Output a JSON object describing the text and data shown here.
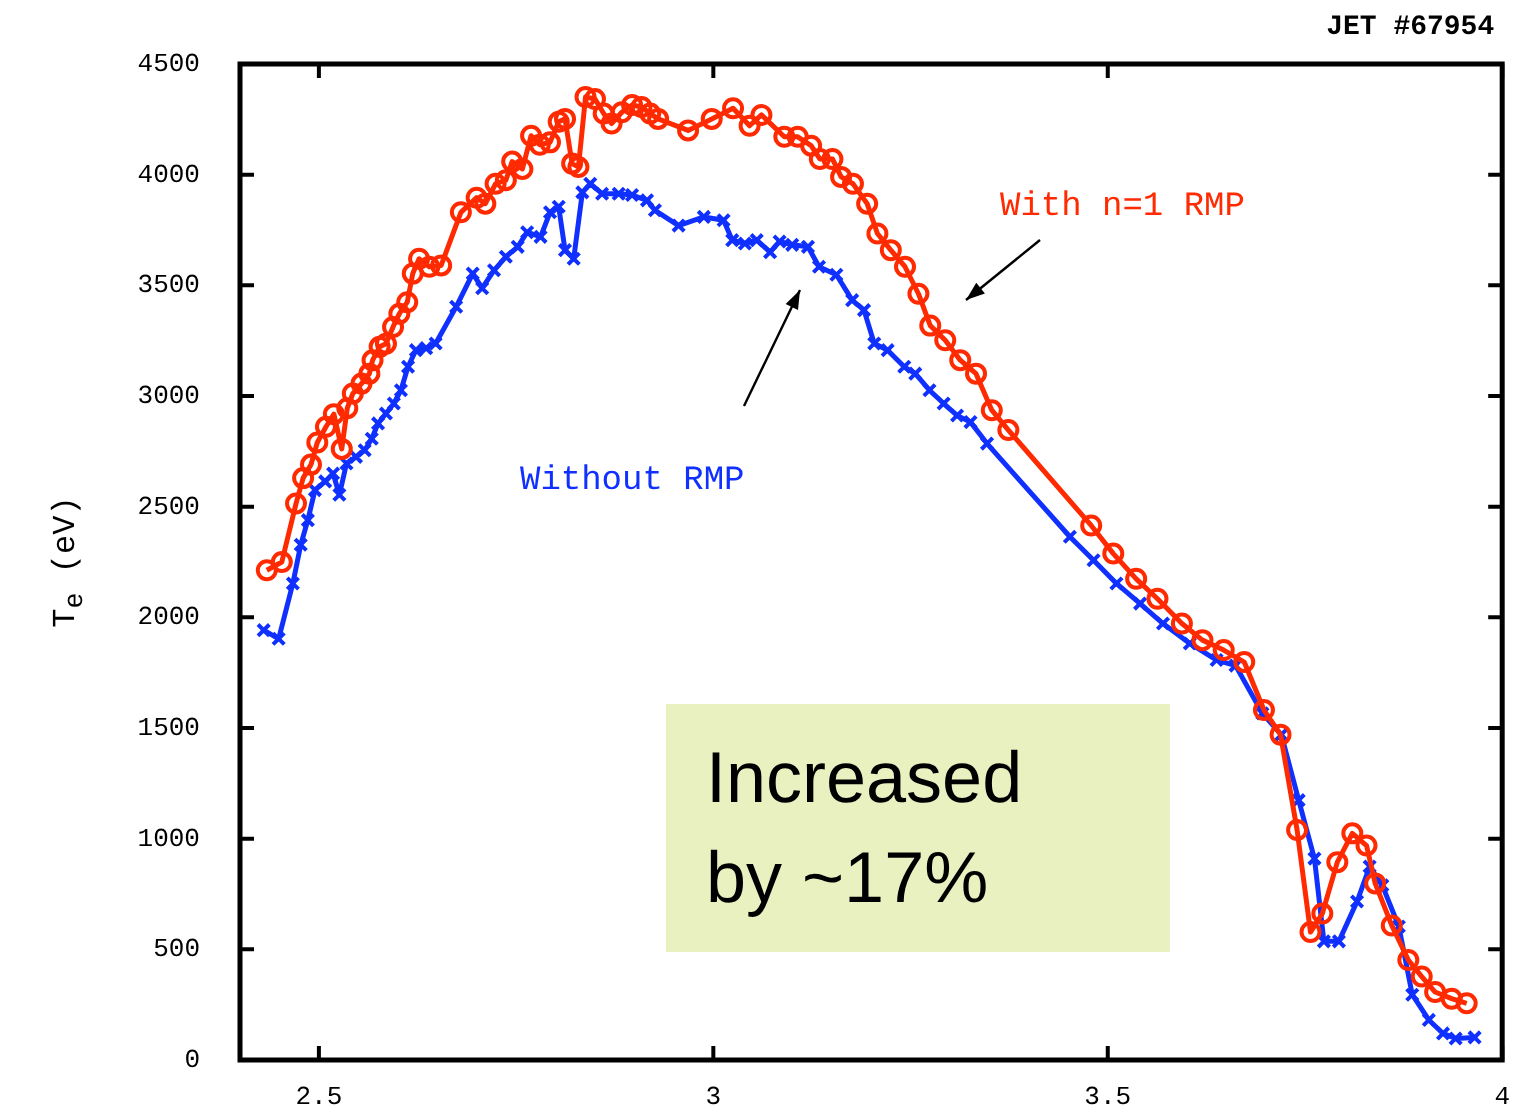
{
  "chart_data": {
    "type": "line",
    "ylabel": "T$_{e}$ (eV)",
    "xlim": [
      2.4,
      4.0
    ],
    "xticks": [
      2.5,
      3,
      3.5,
      4
    ],
    "ylim": [
      0,
      4500
    ],
    "yticks": [
      0,
      500,
      1000,
      1500,
      2000,
      2500,
      3000,
      3500,
      4000,
      4500
    ],
    "grid": false,
    "legend": false,
    "line_style": "solid",
    "annotations": [
      "JET #67954",
      "Increased by ~17%"
    ],
    "series": [
      {
        "name": "With n=1 RMP",
        "color": "#ff2a00",
        "marker": "circle",
        "x": [
          2.434,
          2.453,
          2.471,
          2.48,
          2.49,
          2.498,
          2.509,
          2.519,
          2.529,
          2.536,
          2.543,
          2.554,
          2.564,
          2.568,
          2.577,
          2.585,
          2.594,
          2.602,
          2.612,
          2.619,
          2.627,
          2.64,
          2.655,
          2.68,
          2.7,
          2.711,
          2.724,
          2.737,
          2.745,
          2.758,
          2.769,
          2.78,
          2.793,
          2.804,
          2.812,
          2.821,
          2.829,
          2.838,
          2.85,
          2.861,
          2.871,
          2.884,
          2.897,
          2.909,
          2.92,
          2.93,
          2.968,
          2.998,
          3.025,
          3.046,
          3.061,
          3.09,
          3.107,
          3.124,
          3.135,
          3.151,
          3.162,
          3.177,
          3.195,
          3.208,
          3.225,
          3.243,
          3.26,
          3.275,
          3.294,
          3.313,
          3.333,
          3.353,
          3.374,
          3.479,
          3.507,
          3.536,
          3.563,
          3.594,
          3.62,
          3.647,
          3.673,
          3.698,
          3.719,
          3.74,
          3.757,
          3.772,
          3.791,
          3.81,
          3.828,
          3.839,
          3.86,
          3.881,
          3.898,
          3.915,
          3.936,
          3.955
        ],
        "values": [
          2213,
          2250,
          2514,
          2629,
          2690,
          2790,
          2861,
          2918,
          2761,
          2945,
          3011,
          3056,
          3101,
          3161,
          3222,
          3236,
          3312,
          3372,
          3424,
          3553,
          3620,
          3584,
          3590,
          3830,
          3896,
          3869,
          3959,
          3975,
          4059,
          4026,
          4176,
          4135,
          4146,
          4239,
          4252,
          4050,
          4035,
          4351,
          4342,
          4276,
          4231,
          4282,
          4315,
          4306,
          4276,
          4252,
          4200,
          4252,
          4300,
          4221,
          4270,
          4171,
          4171,
          4131,
          4071,
          4071,
          3990,
          3959,
          3869,
          3734,
          3659,
          3584,
          3462,
          3318,
          3252,
          3162,
          3101,
          2936,
          2846,
          2415,
          2288,
          2174,
          2084,
          1972,
          1897,
          1852,
          1798,
          1581,
          1470,
          1039,
          578,
          662,
          894,
          1024,
          969,
          798,
          608,
          452,
          377,
          307,
          277,
          256
        ]
      },
      {
        "name": "Without RMP",
        "color": "#1030ff",
        "marker": "cross",
        "x": [
          2.43,
          2.449,
          2.467,
          2.477,
          2.486,
          2.495,
          2.508,
          2.518,
          2.526,
          2.535,
          2.547,
          2.558,
          2.567,
          2.575,
          2.585,
          2.595,
          2.604,
          2.613,
          2.623,
          2.636,
          2.648,
          2.674,
          2.695,
          2.707,
          2.722,
          2.737,
          2.752,
          2.764,
          2.781,
          2.793,
          2.804,
          2.812,
          2.823,
          2.834,
          2.844,
          2.859,
          2.88,
          2.897,
          2.916,
          2.926,
          2.956,
          2.988,
          3.013,
          3.024,
          3.04,
          3.055,
          3.072,
          3.084,
          3.1,
          3.12,
          3.134,
          3.156,
          3.176,
          3.191,
          3.204,
          3.221,
          3.242,
          3.256,
          3.274,
          3.292,
          3.309,
          3.326,
          3.347,
          3.452,
          3.482,
          3.511,
          3.541,
          3.57,
          3.604,
          3.638,
          3.662,
          3.696,
          3.72,
          3.742,
          3.762,
          3.774,
          3.793,
          3.816,
          3.832,
          3.848,
          3.869,
          3.886,
          3.907,
          3.925,
          3.941,
          3.965
        ],
        "values": [
          1942,
          1903,
          2153,
          2328,
          2439,
          2575,
          2614,
          2650,
          2554,
          2695,
          2725,
          2755,
          2807,
          2876,
          2921,
          2966,
          3026,
          3132,
          3207,
          3216,
          3237,
          3403,
          3553,
          3487,
          3568,
          3629,
          3674,
          3740,
          3719,
          3830,
          3855,
          3659,
          3620,
          3920,
          3959,
          3914,
          3914,
          3908,
          3884,
          3839,
          3770,
          3809,
          3794,
          3704,
          3689,
          3704,
          3650,
          3698,
          3683,
          3674,
          3584,
          3548,
          3433,
          3388,
          3237,
          3207,
          3132,
          3101,
          3026,
          2966,
          2912,
          2882,
          2785,
          2364,
          2258,
          2153,
          2062,
          1972,
          1882,
          1807,
          1782,
          1566,
          1470,
          1174,
          910,
          536,
          536,
          716,
          874,
          789,
          603,
          295,
          181,
          120,
          97,
          102
        ]
      }
    ]
  }
}
